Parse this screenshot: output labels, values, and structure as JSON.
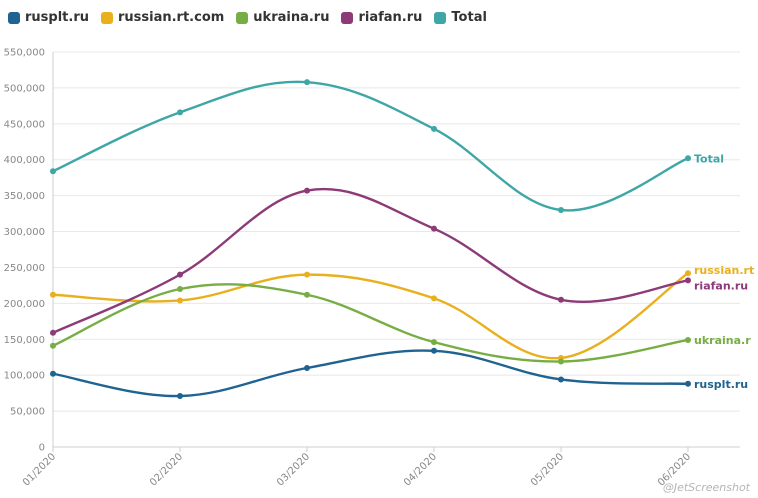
{
  "chart_data": {
    "type": "line",
    "categories": [
      "01/2020",
      "02/2020",
      "03/2020",
      "04/2020",
      "05/2020",
      "06/2020"
    ],
    "ylim": [
      0,
      550000
    ],
    "yticks": [
      "0",
      "50,000",
      "100,000",
      "150,000",
      "200,000",
      "250,000",
      "300,000",
      "350,000",
      "400,000",
      "450,000",
      "500,000",
      "550,000"
    ],
    "grid": true,
    "legend_position": "top-left",
    "title": "",
    "xlabel": "",
    "ylabel": "",
    "series": [
      {
        "name": "rusplt.ru",
        "color": "#1f6391",
        "end_label": "rusplt.ru",
        "values": [
          102000,
          71000,
          110000,
          134000,
          94000,
          88000
        ]
      },
      {
        "name": "russian.rt.com",
        "color": "#e9b01e",
        "end_label": "russian.rt",
        "values": [
          212000,
          204000,
          240000,
          207000,
          124000,
          242000
        ]
      },
      {
        "name": "ukraina.ru",
        "color": "#77ad45",
        "end_label": "ukraina.r",
        "values": [
          141000,
          220000,
          212000,
          146000,
          119000,
          149000
        ]
      },
      {
        "name": "riafan.ru",
        "color": "#8c3a78",
        "end_label": "riafan.ru",
        "values": [
          159000,
          240000,
          357000,
          304000,
          205000,
          232000
        ]
      },
      {
        "name": "Total",
        "color": "#3fa6a6",
        "end_label": "Total",
        "values": [
          384000,
          466000,
          508000,
          443000,
          330000,
          402000
        ]
      }
    ]
  },
  "watermark": "@JetScreenshot"
}
